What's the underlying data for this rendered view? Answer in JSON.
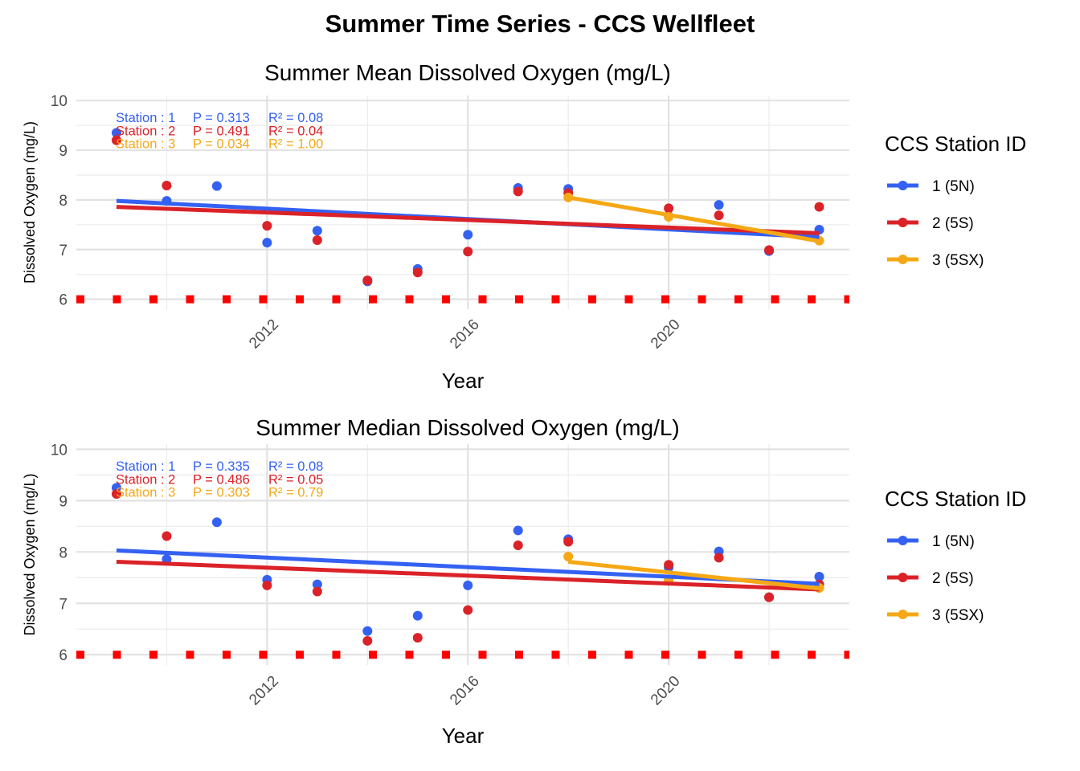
{
  "figure_title": "Summer Time Series - CCS Wellfleet",
  "threshold": {
    "value": 6,
    "color": "#ff0000"
  },
  "legend": {
    "title": "CCS Station ID",
    "items": [
      {
        "label": "1 (5N)",
        "color": "#3461f2"
      },
      {
        "label": "2 (5S)",
        "color": "#db2228"
      },
      {
        "label": "3 (5SX)",
        "color": "#f5a816"
      }
    ]
  },
  "chart_data": [
    {
      "type": "scatter",
      "title": "Summer Mean Dissolved Oxygen (mg/L)",
      "xlabel": "Year",
      "ylabel": "Dissolved Oxygen (mg/L)",
      "xlim": [
        2008.2,
        2023.6
      ],
      "ylim": [
        5.8,
        10.1
      ],
      "xticks": [
        2012,
        2016,
        2020
      ],
      "yticks": [
        6,
        7,
        8,
        9,
        10
      ],
      "grid": true,
      "legend_position": "right",
      "stats": [
        {
          "station": "Station : 1",
          "p": "P = 0.313",
          "r2": "R² = 0.08",
          "color": "#3461f2"
        },
        {
          "station": "Station : 2",
          "p": "P = 0.491",
          "r2": "R² = 0.04",
          "color": "#db2228"
        },
        {
          "station": "Station : 3",
          "p": "P = 0.034",
          "r2": "R² = 1.00",
          "color": "#f5a816"
        }
      ],
      "series": [
        {
          "name": "1 (5N)",
          "color": "#3461f2",
          "x": [
            2009,
            2010,
            2011,
            2012,
            2013,
            2014,
            2015,
            2016,
            2017,
            2018,
            2020,
            2021,
            2022,
            2023
          ],
          "y": [
            9.35,
            7.98,
            8.28,
            7.14,
            7.38,
            6.36,
            6.61,
            7.3,
            8.24,
            8.22,
            7.67,
            7.9,
            6.97,
            7.4
          ],
          "trend": [
            [
              2009,
              7.98
            ],
            [
              2023,
              7.25
            ]
          ]
        },
        {
          "name": "2 (5S)",
          "color": "#db2228",
          "x": [
            2009,
            2010,
            2012,
            2013,
            2014,
            2015,
            2016,
            2017,
            2018,
            2020,
            2021,
            2022,
            2023
          ],
          "y": [
            9.2,
            8.29,
            7.48,
            7.19,
            6.38,
            6.54,
            6.96,
            8.17,
            8.14,
            7.83,
            7.69,
            6.99,
            7.86
          ],
          "trend": [
            [
              2009,
              7.86
            ],
            [
              2023,
              7.33
            ]
          ]
        },
        {
          "name": "3 (5SX)",
          "color": "#f5a816",
          "x": [
            2018,
            2020,
            2023
          ],
          "y": [
            8.05,
            7.66,
            7.18
          ],
          "trend": [
            [
              2018,
              8.05
            ],
            [
              2023,
              7.17
            ]
          ]
        }
      ]
    },
    {
      "type": "scatter",
      "title": "Summer Median Dissolved Oxygen (mg/L)",
      "xlabel": "Year",
      "ylabel": "Dissolved Oxygen (mg/L)",
      "xlim": [
        2008.2,
        2023.6
      ],
      "ylim": [
        5.8,
        10.1
      ],
      "xticks": [
        2012,
        2016,
        2020
      ],
      "yticks": [
        6,
        7,
        8,
        9,
        10
      ],
      "grid": true,
      "legend_position": "right",
      "stats": [
        {
          "station": "Station : 1",
          "p": "P = 0.335",
          "r2": "R² = 0.08",
          "color": "#3461f2"
        },
        {
          "station": "Station : 2",
          "p": "P = 0.486",
          "r2": "R² = 0.05",
          "color": "#db2228"
        },
        {
          "station": "Station : 3",
          "p": "P = 0.303",
          "r2": "R² = 0.79",
          "color": "#f5a816"
        }
      ],
      "series": [
        {
          "name": "1 (5N)",
          "color": "#3461f2",
          "x": [
            2009,
            2010,
            2011,
            2012,
            2013,
            2014,
            2015,
            2016,
            2017,
            2018,
            2020,
            2021,
            2022,
            2023
          ],
          "y": [
            9.25,
            7.86,
            8.58,
            7.46,
            7.37,
            6.46,
            6.76,
            7.35,
            8.42,
            8.25,
            7.7,
            8.01,
            7.12,
            7.52
          ],
          "trend": [
            [
              2009,
              8.03
            ],
            [
              2023,
              7.38
            ]
          ]
        },
        {
          "name": "2 (5S)",
          "color": "#db2228",
          "x": [
            2009,
            2010,
            2012,
            2013,
            2014,
            2015,
            2016,
            2017,
            2018,
            2020,
            2021,
            2022,
            2023
          ],
          "y": [
            9.13,
            8.31,
            7.35,
            7.23,
            6.27,
            6.33,
            6.87,
            8.13,
            8.2,
            7.75,
            7.89,
            7.12,
            7.37
          ],
          "trend": [
            [
              2009,
              7.81
            ],
            [
              2023,
              7.27
            ]
          ]
        },
        {
          "name": "3 (5SX)",
          "color": "#f5a816",
          "x": [
            2018,
            2020,
            2023
          ],
          "y": [
            7.91,
            7.45,
            7.3
          ],
          "trend": [
            [
              2018,
              7.81
            ],
            [
              2023,
              7.29
            ]
          ]
        }
      ]
    }
  ]
}
